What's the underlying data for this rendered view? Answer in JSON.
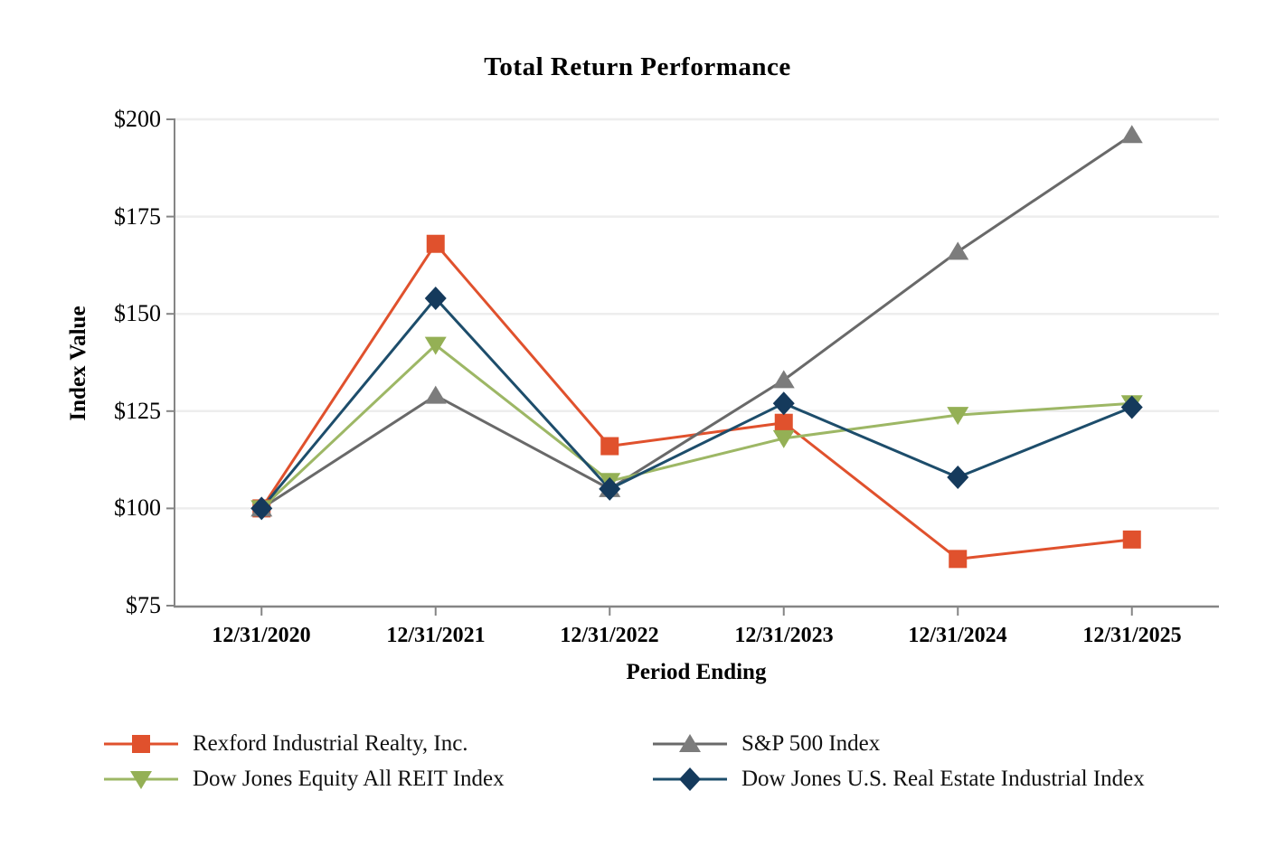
{
  "chart_data": {
    "type": "line",
    "title": "Total Return Performance",
    "xlabel": "Period Ending",
    "ylabel": "Index Value",
    "categories": [
      "12/31/2020",
      "12/31/2021",
      "12/31/2022",
      "12/31/2023",
      "12/31/2024",
      "12/31/2025"
    ],
    "ylim": [
      75,
      200
    ],
    "ytick_values": [
      200,
      175,
      150,
      125,
      100,
      75
    ],
    "ytick_labels": [
      "$200",
      "$175",
      "$150",
      "$125",
      "$100",
      "$75"
    ],
    "grid": "horizontal-only",
    "grid_color": "#EDEDED",
    "axis_color": "#858585",
    "background_color": "#FFFFFF",
    "legend_position": "bottom-two-columns",
    "series": [
      {
        "name": "Rexford Industrial Realty, Inc.",
        "marker": "square",
        "color": "#E0512D",
        "marker_color": "#E0512D",
        "values": [
          100,
          168,
          116,
          122,
          87,
          92
        ]
      },
      {
        "name": "S&P 500 Index",
        "marker": "triangle-up",
        "color": "#696969",
        "marker_color": "#7C7C7C",
        "values": [
          100,
          129,
          105,
          133,
          166,
          196
        ]
      },
      {
        "name": "Dow Jones Equity All REIT Index",
        "marker": "triangle-down",
        "color": "#9DB765",
        "marker_color": "#94B055",
        "values": [
          100,
          142,
          107,
          118,
          124,
          127
        ]
      },
      {
        "name": "Dow Jones U.S. Real Estate Industrial Index",
        "marker": "diamond",
        "color": "#1D4D6B",
        "marker_color": "#153A5C",
        "values": [
          100,
          154,
          105,
          127,
          108,
          126
        ]
      }
    ]
  }
}
